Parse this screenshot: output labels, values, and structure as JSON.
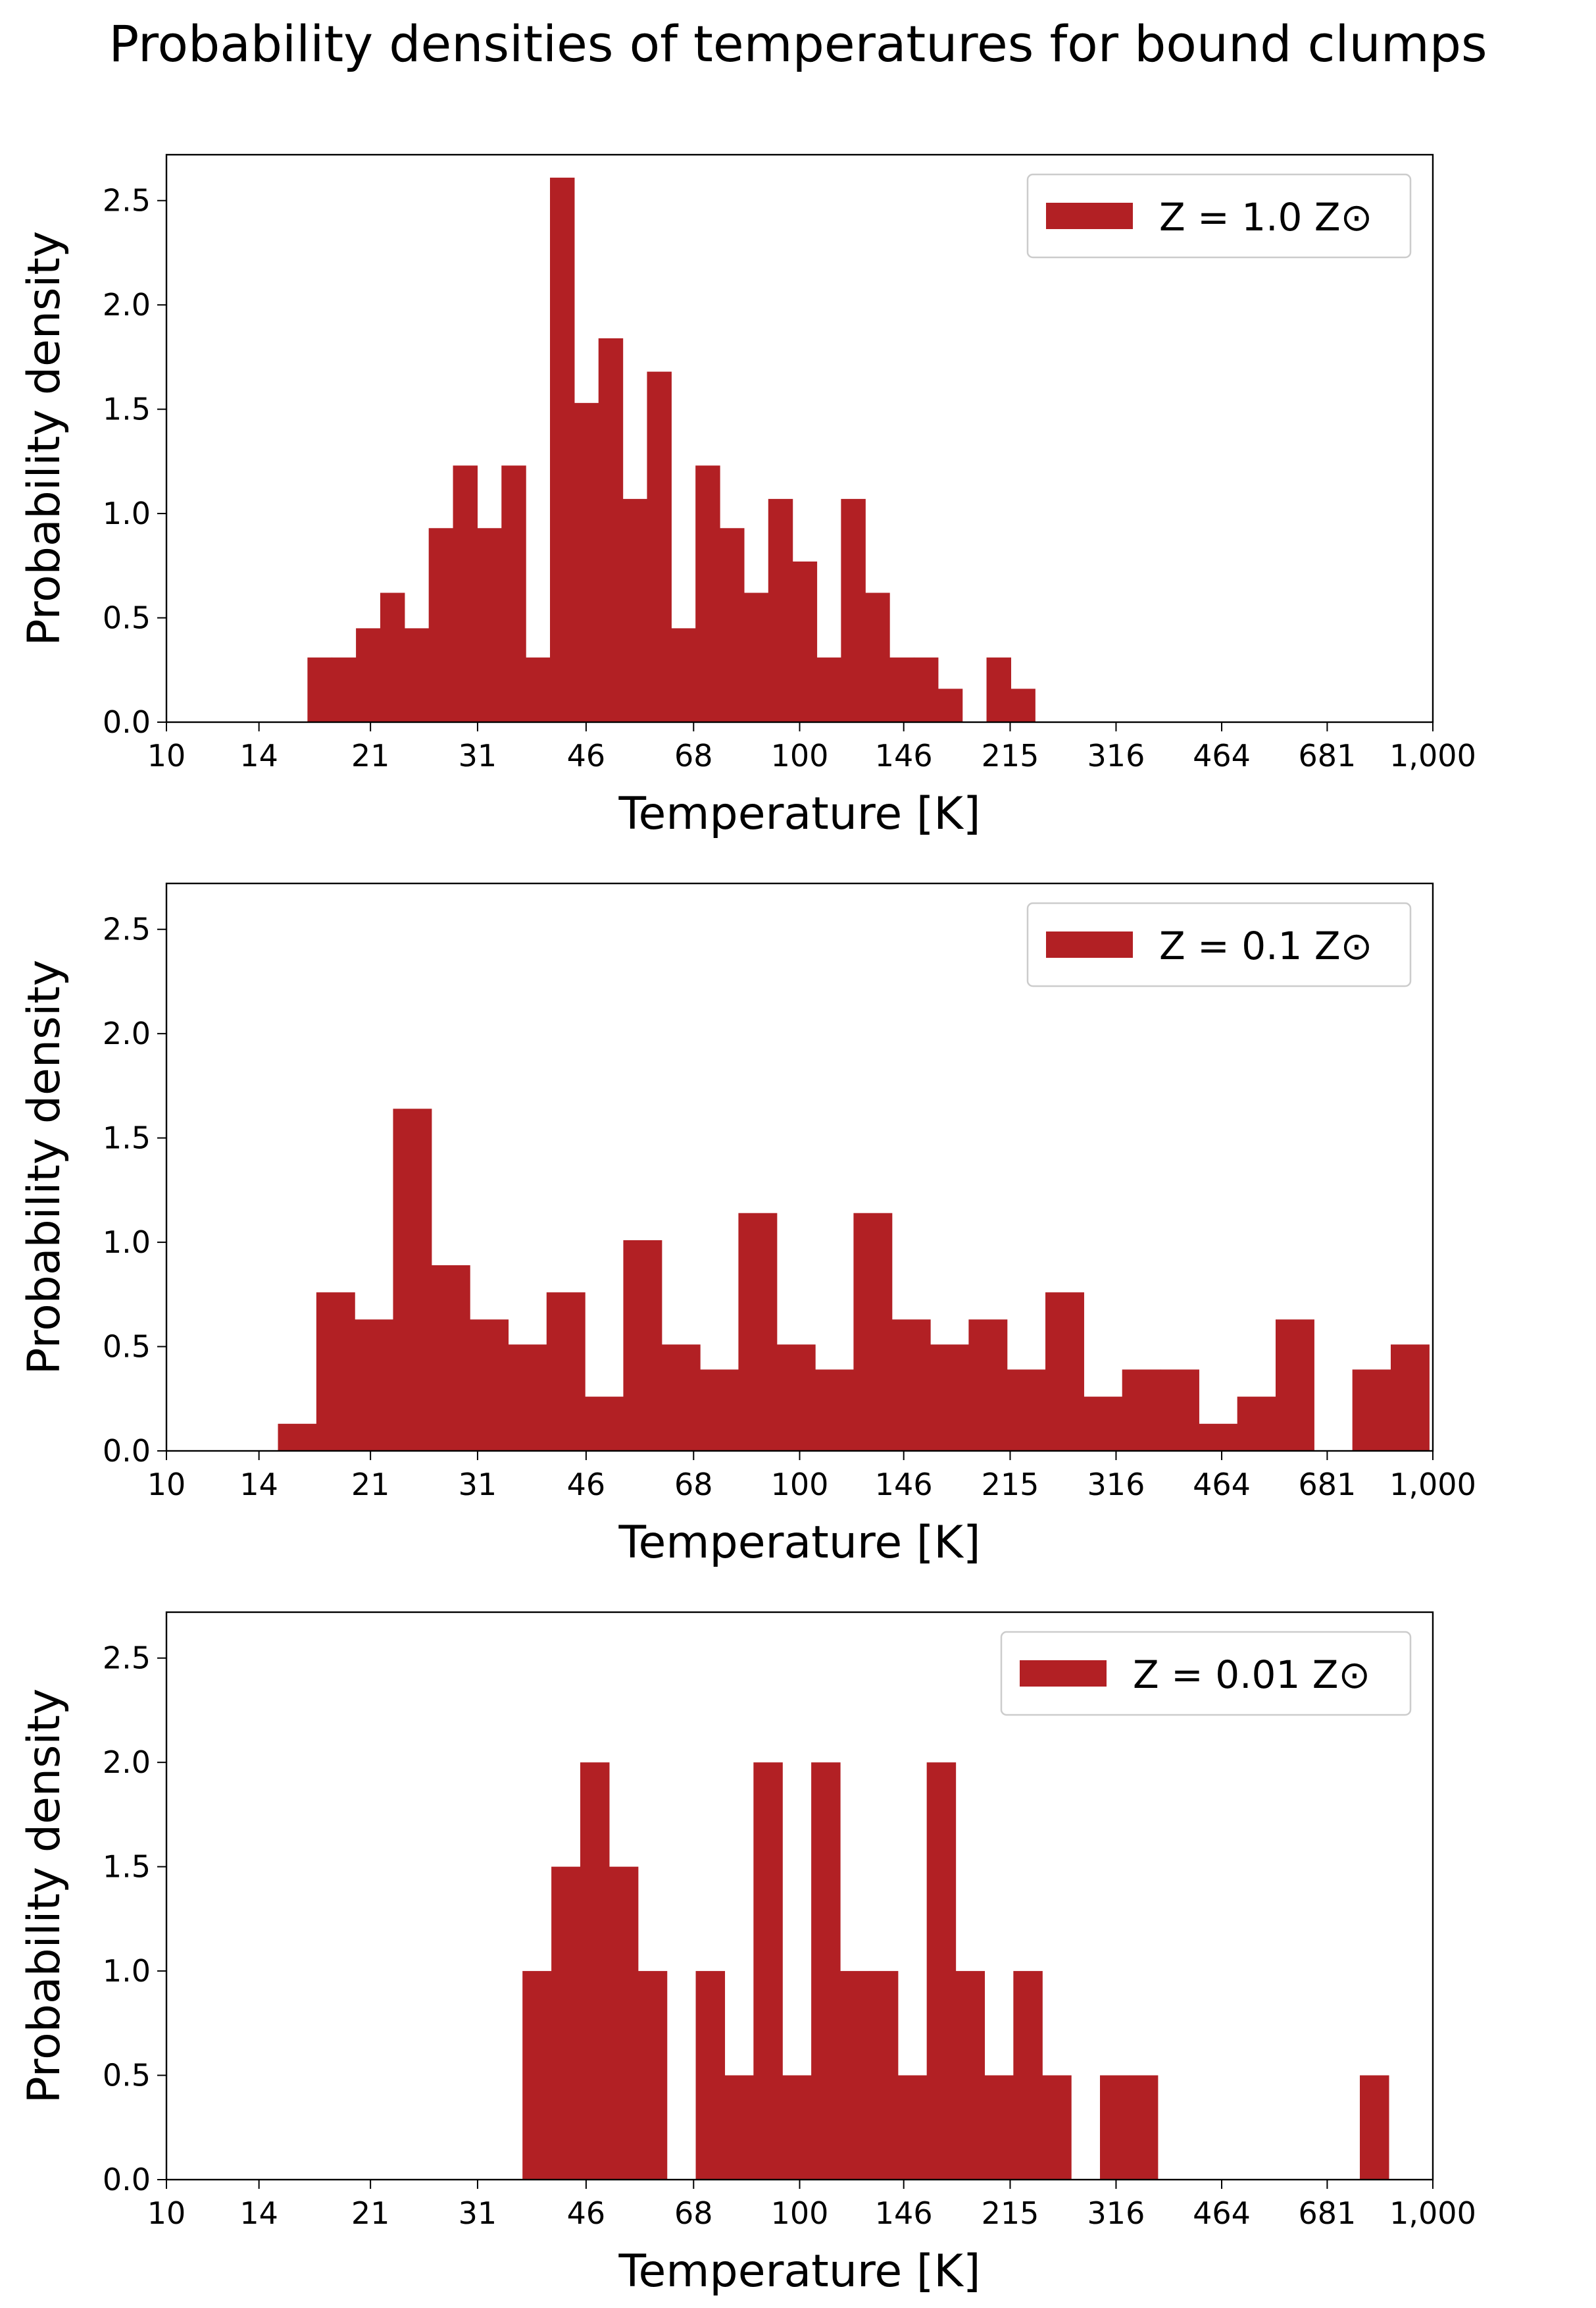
{
  "figure": {
    "suptitle": "Probability densities of temperatures for bound clumps"
  },
  "colors": {
    "bar": "#b22024",
    "axis": "#000000",
    "legend_border": "#cccccc"
  },
  "chart_data": [
    {
      "type": "bar",
      "xscale": "log",
      "xlabel": "Temperature [K]",
      "ylabel": "Probability density",
      "xlim": [
        10,
        1000
      ],
      "ylim": [
        0,
        2.72
      ],
      "xticks": [
        10,
        14,
        21,
        31,
        46,
        68,
        100,
        146,
        215,
        316,
        464,
        681,
        1000
      ],
      "xtick_labels": [
        "10",
        "14",
        "21",
        "31",
        "46",
        "68",
        "100",
        "146",
        "215",
        "316",
        "464",
        "681",
        "1,000"
      ],
      "yticks": [
        0.0,
        0.5,
        1.0,
        1.5,
        2.0,
        2.5
      ],
      "ytick_labels": [
        "0.0",
        "0.5",
        "1.0",
        "1.5",
        "2.0",
        "2.5"
      ],
      "legend": {
        "label": "Z = 1.0 Z⊙",
        "location": "upper right"
      },
      "bins": {
        "start": 16.7,
        "width_log10": 0.0383
      },
      "values": [
        0.31,
        0.31,
        0.45,
        0.62,
        0.45,
        0.93,
        1.23,
        0.93,
        1.23,
        0.31,
        2.61,
        1.53,
        1.84,
        1.07,
        1.68,
        0.45,
        1.23,
        0.93,
        0.62,
        1.07,
        0.77,
        0.31,
        1.07,
        0.62,
        0.31,
        0.31,
        0.16,
        0.0,
        0.31,
        0.16
      ]
    },
    {
      "type": "bar",
      "xscale": "log",
      "xlabel": "Temperature [K]",
      "ylabel": "Probability density",
      "xlim": [
        10,
        1000
      ],
      "ylim": [
        0,
        2.72
      ],
      "xticks": [
        10,
        14,
        21,
        31,
        46,
        68,
        100,
        146,
        215,
        316,
        464,
        681,
        1000
      ],
      "xtick_labels": [
        "10",
        "14",
        "21",
        "31",
        "46",
        "68",
        "100",
        "146",
        "215",
        "316",
        "464",
        "681",
        "1,000"
      ],
      "yticks": [
        0.0,
        0.5,
        1.0,
        1.5,
        2.0,
        2.5
      ],
      "ytick_labels": [
        "0.0",
        "0.5",
        "1.0",
        "1.5",
        "2.0",
        "2.5"
      ],
      "legend": {
        "label": "Z = 0.1 Z⊙",
        "location": "upper right"
      },
      "bins": {
        "start": 15.0,
        "width_log10": 0.0606
      },
      "values": [
        0.13,
        0.76,
        0.63,
        1.64,
        0.89,
        0.63,
        0.51,
        0.76,
        0.26,
        1.01,
        0.51,
        0.39,
        1.14,
        0.51,
        0.39,
        1.14,
        0.63,
        0.51,
        0.63,
        0.39,
        0.76,
        0.26,
        0.39,
        0.39,
        0.13,
        0.26,
        0.63,
        0.0,
        0.39,
        0.51
      ]
    },
    {
      "type": "bar",
      "xscale": "log",
      "xlabel": "Temperature [K]",
      "ylabel": "Probability density",
      "xlim": [
        10,
        1000
      ],
      "ylim": [
        0,
        2.72
      ],
      "xticks": [
        10,
        14,
        21,
        31,
        46,
        68,
        100,
        146,
        215,
        316,
        464,
        681,
        1000
      ],
      "xtick_labels": [
        "10",
        "14",
        "21",
        "31",
        "46",
        "68",
        "100",
        "146",
        "215",
        "316",
        "464",
        "681",
        "1,000"
      ],
      "yticks": [
        0.0,
        0.5,
        1.0,
        1.5,
        2.0,
        2.5
      ],
      "ytick_labels": [
        "0.0",
        "0.5",
        "1.0",
        "1.5",
        "2.0",
        "2.5"
      ],
      "legend": {
        "label": "Z = 0.01 Z⊙",
        "location": "upper right"
      },
      "bins": {
        "start": 36.5,
        "width_log10": 0.0456
      },
      "values": [
        1.0,
        1.5,
        2.0,
        1.5,
        1.0,
        0.0,
        1.0,
        0.5,
        2.0,
        0.5,
        2.0,
        1.0,
        1.0,
        0.5,
        2.0,
        1.0,
        0.5,
        1.0,
        0.5,
        0.0,
        0.5,
        0.5,
        0.0,
        0.0,
        0.0,
        0.0,
        0.0,
        0.0,
        0.0,
        0.5
      ]
    }
  ]
}
